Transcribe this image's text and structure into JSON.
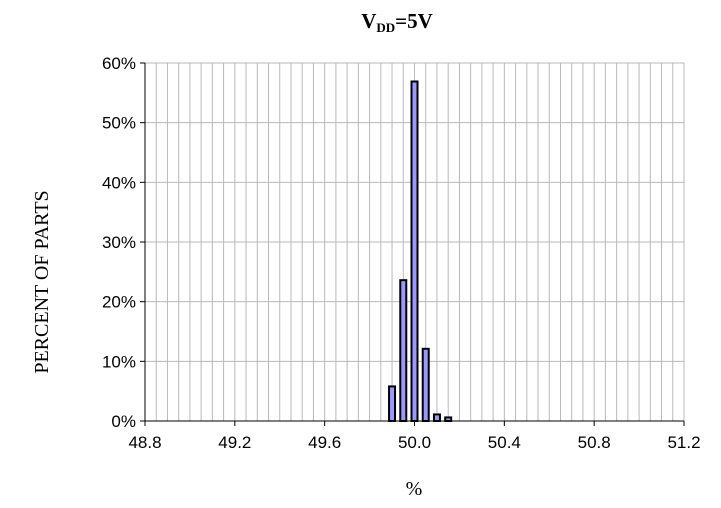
{
  "chart_data": {
    "type": "bar",
    "title": {
      "main": "V",
      "subscript": "DD",
      "suffix": "=5V"
    },
    "xlabel": "%",
    "ylabel": "PERCENT OF PARTS",
    "x_ticks": [
      "48.8",
      "49.2",
      "49.6",
      "50.0",
      "50.4",
      "50.8",
      "51.2"
    ],
    "y_ticks": [
      "0%",
      "10%",
      "20%",
      "30%",
      "40%",
      "50%",
      "60%"
    ],
    "xlim": [
      48.8,
      51.2
    ],
    "ylim": [
      0,
      60
    ],
    "x_grid_step": 0.05,
    "bars": [
      {
        "x": 49.9,
        "value": 5.8
      },
      {
        "x": 49.95,
        "value": 23.6
      },
      {
        "x": 50.0,
        "value": 56.9
      },
      {
        "x": 50.05,
        "value": 12.1
      },
      {
        "x": 50.1,
        "value": 1.1
      },
      {
        "x": 50.15,
        "value": 0.6
      }
    ],
    "grid": true,
    "legend": "none",
    "bar_color": "#9999ff"
  }
}
